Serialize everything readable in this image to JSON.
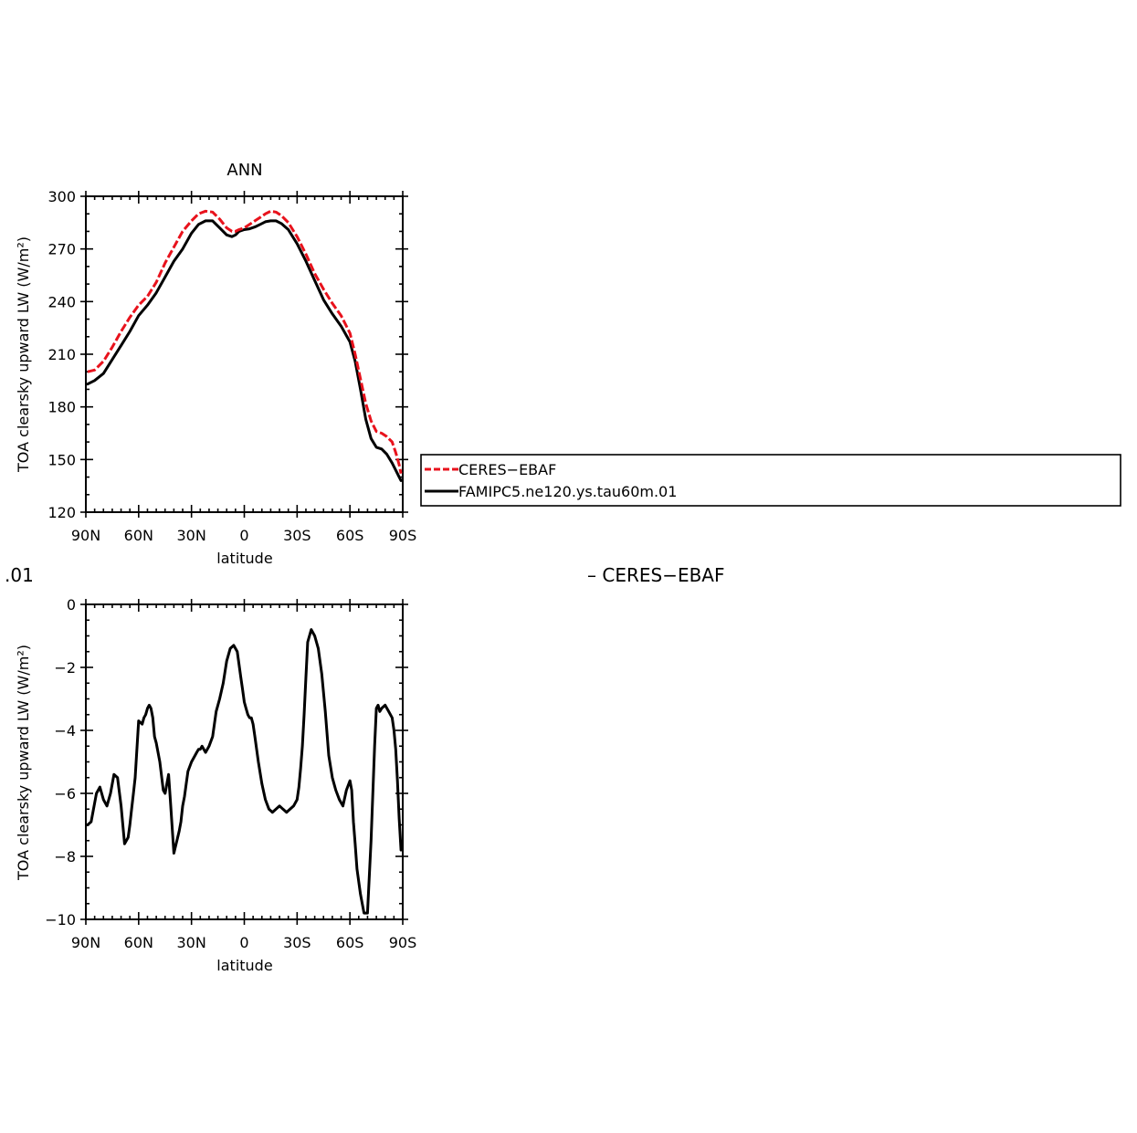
{
  "fragments": {
    "left": ".01",
    "right": "– CERES−EBAF"
  },
  "chart_data": [
    {
      "type": "line",
      "title": "ANN",
      "xlabel": "latitude",
      "ylabel": "TOA clearsky upward LW (W/m²)",
      "xlim": [
        -90,
        90
      ],
      "ylim": [
        120,
        300
      ],
      "xticks": [
        -90,
        -60,
        -30,
        0,
        30,
        60,
        90
      ],
      "xtick_labels": [
        "90N",
        "60N",
        "30N",
        "0",
        "30S",
        "60S",
        "90S"
      ],
      "yticks": [
        120,
        150,
        180,
        210,
        240,
        270,
        300
      ],
      "ytick_labels": [
        "120",
        "150",
        "180",
        "210",
        "240",
        "270",
        "300"
      ],
      "legend": [
        "CERES−EBAF",
        "FAMIPC5.ne120.ys.tau60m.01"
      ],
      "legend_placement": "right",
      "series": [
        {
          "name": "CERES−EBAF",
          "color": "#e8121c",
          "dash": "dashed",
          "x": [
            -89,
            -85,
            -80,
            -75,
            -70,
            -65,
            -60,
            -55,
            -50,
            -45,
            -40,
            -35,
            -30,
            -26,
            -22,
            -18,
            -14,
            -10,
            -7,
            -5,
            -3,
            0,
            3,
            6,
            9,
            12,
            15,
            18,
            21,
            25,
            30,
            35,
            40,
            45,
            50,
            55,
            60,
            63,
            66,
            69,
            72,
            75,
            78,
            81,
            84,
            86,
            88,
            89
          ],
          "y": [
            200,
            201,
            206,
            214,
            223,
            231,
            238,
            243,
            251,
            262,
            271,
            280,
            286,
            290,
            291.5,
            291,
            287,
            282,
            280,
            280,
            281,
            282,
            284,
            286,
            288,
            290,
            291.5,
            291,
            289,
            285,
            277,
            267,
            256,
            247,
            239,
            232,
            222,
            210,
            196,
            182,
            172,
            166,
            165,
            163,
            160,
            154,
            147,
            142
          ]
        },
        {
          "name": "FAMIPC5.ne120.ys.tau60m.01",
          "color": "#000000",
          "dash": "solid",
          "x": [
            -89,
            -85,
            -80,
            -75,
            -70,
            -65,
            -60,
            -55,
            -50,
            -45,
            -40,
            -35,
            -30,
            -26,
            -22,
            -18,
            -14,
            -10,
            -7,
            -5,
            -3,
            0,
            3,
            6,
            9,
            12,
            15,
            18,
            21,
            25,
            30,
            35,
            40,
            45,
            50,
            55,
            60,
            63,
            66,
            69,
            72,
            75,
            78,
            81,
            84,
            86,
            88,
            89
          ],
          "y": [
            193,
            195,
            199,
            207,
            215,
            223,
            232,
            238,
            245,
            254,
            263,
            270,
            279,
            284,
            286,
            286,
            282,
            278,
            277,
            278,
            280,
            281,
            281.5,
            282.5,
            284,
            285.5,
            286,
            286,
            284.5,
            281,
            273,
            263,
            252,
            241,
            233,
            226,
            217,
            206,
            190,
            173,
            162,
            157,
            156,
            153,
            148,
            144,
            140,
            138
          ]
        }
      ]
    },
    {
      "type": "line",
      "title": "",
      "xlabel": "latitude",
      "ylabel": "TOA clearsky upward LW (W/m²)",
      "xlim": [
        -90,
        90
      ],
      "ylim": [
        -10,
        0
      ],
      "xticks": [
        -90,
        -60,
        -30,
        0,
        30,
        60,
        90
      ],
      "xtick_labels": [
        "90N",
        "60N",
        "30N",
        "0",
        "30S",
        "60S",
        "90S"
      ],
      "yticks": [
        -10,
        -8,
        -6,
        -4,
        -2,
        0
      ],
      "ytick_labels": [
        "−10",
        "−8",
        "−6",
        "−4",
        "−2",
        "0"
      ],
      "series": [
        {
          "color": "#000000",
          "dash": "solid",
          "x": [
            -89,
            -87,
            -84,
            -82,
            -80,
            -78,
            -76,
            -74,
            -72,
            -70,
            -68,
            -66,
            -65,
            -64,
            -63,
            -62,
            -60,
            -58,
            -57,
            -56,
            -55,
            -54,
            -53,
            -52,
            -51,
            -50,
            -48,
            -46,
            -45,
            -44,
            -43,
            -42,
            -40,
            -37,
            -36,
            -35,
            -34,
            -33,
            -32,
            -30,
            -28,
            -27,
            -26,
            -25,
            -24,
            -22,
            -20,
            -18,
            -16,
            -14,
            -12,
            -10,
            -8,
            -6,
            -4,
            -3,
            -2,
            -1,
            0,
            1,
            2,
            3,
            4,
            5,
            6,
            7,
            8,
            10,
            12,
            14,
            16,
            18,
            20,
            22,
            24,
            26,
            28,
            30,
            31,
            32,
            33,
            34,
            35,
            36,
            38,
            40,
            42,
            44,
            46,
            48,
            50,
            52,
            54,
            56,
            58,
            60,
            61,
            62,
            63,
            64,
            66,
            68,
            70,
            72,
            74,
            75,
            76,
            77,
            78,
            80,
            82,
            84,
            85,
            86,
            87,
            88,
            89
          ],
          "y": [
            -7.0,
            -6.9,
            -6.0,
            -5.8,
            -6.2,
            -6.4,
            -6.0,
            -5.4,
            -5.5,
            -6.4,
            -7.6,
            -7.4,
            -7.0,
            -6.5,
            -6.0,
            -5.5,
            -3.7,
            -3.8,
            -3.6,
            -3.5,
            -3.3,
            -3.2,
            -3.3,
            -3.6,
            -4.2,
            -4.4,
            -5.0,
            -5.9,
            -6.0,
            -5.7,
            -5.4,
            -6.2,
            -7.9,
            -7.2,
            -6.9,
            -6.4,
            -6.1,
            -5.7,
            -5.3,
            -5.0,
            -4.8,
            -4.7,
            -4.6,
            -4.6,
            -4.5,
            -4.7,
            -4.5,
            -4.2,
            -3.4,
            -3.0,
            -2.5,
            -1.8,
            -1.4,
            -1.3,
            -1.5,
            -1.9,
            -2.3,
            -2.7,
            -3.1,
            -3.3,
            -3.5,
            -3.6,
            -3.6,
            -3.8,
            -4.2,
            -4.6,
            -5.0,
            -5.7,
            -6.2,
            -6.5,
            -6.6,
            -6.5,
            -6.4,
            -6.5,
            -6.6,
            -6.5,
            -6.4,
            -6.2,
            -5.8,
            -5.2,
            -4.5,
            -3.5,
            -2.3,
            -1.2,
            -0.8,
            -1.0,
            -1.4,
            -2.2,
            -3.4,
            -4.8,
            -5.5,
            -5.9,
            -6.2,
            -6.4,
            -5.9,
            -5.6,
            -5.9,
            -6.9,
            -7.6,
            -8.4,
            -9.2,
            -9.8,
            -9.8,
            -7.5,
            -4.5,
            -3.3,
            -3.2,
            -3.4,
            -3.3,
            -3.2,
            -3.4,
            -3.6,
            -4.0,
            -4.6,
            -5.6,
            -6.8,
            -7.8
          ]
        }
      ]
    }
  ]
}
